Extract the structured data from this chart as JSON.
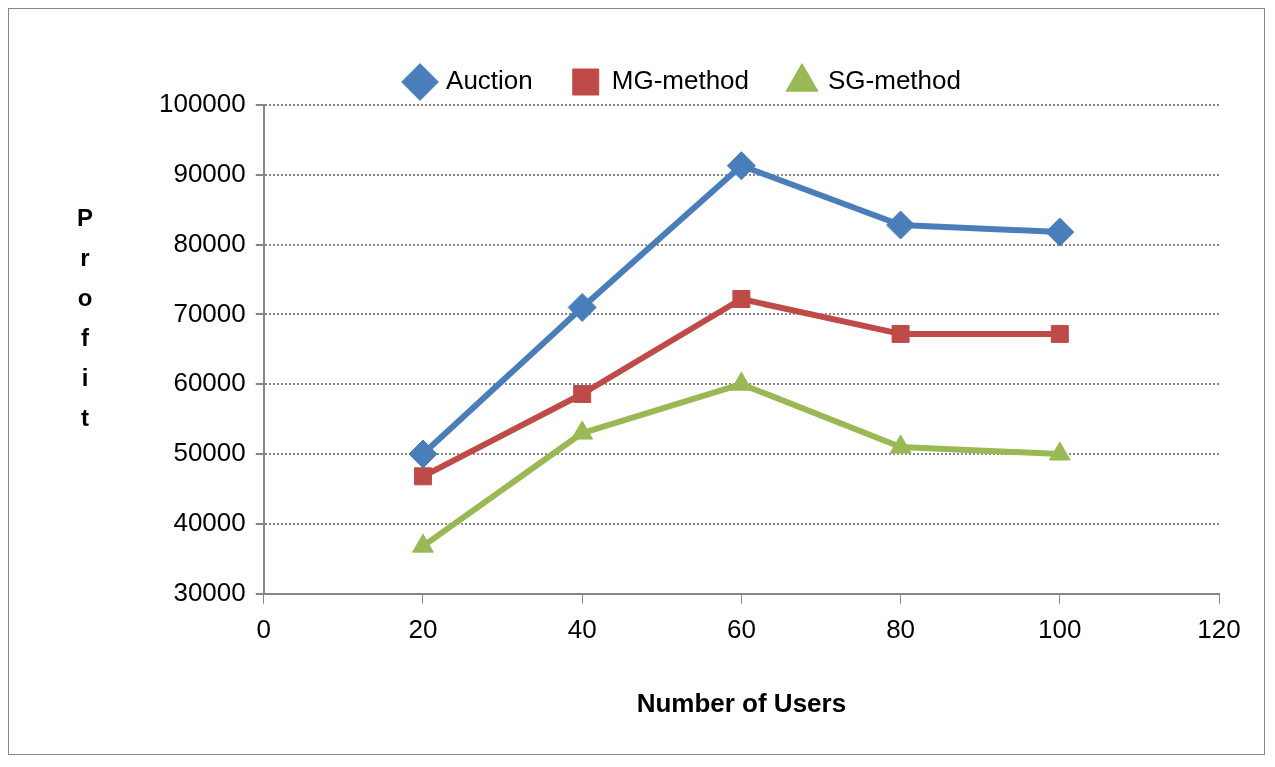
{
  "chart_data": {
    "type": "line",
    "xlabel": "Number of Users",
    "ylabel": "Profit",
    "x": [
      20,
      40,
      60,
      80,
      100
    ],
    "series": [
      {
        "name": "Auction",
        "color": "#4a7ebb",
        "marker": "diamond",
        "values": [
          50000,
          71000,
          91300,
          82800,
          81800
        ]
      },
      {
        "name": "MG-method",
        "color": "#be4b48",
        "marker": "square",
        "values": [
          46800,
          58600,
          72200,
          67200,
          67200
        ]
      },
      {
        "name": "SG-method",
        "color": "#98b954",
        "marker": "triangle",
        "values": [
          36800,
          53000,
          60000,
          51000,
          50000
        ]
      }
    ],
    "xlim": [
      0,
      120
    ],
    "xticks": [
      0,
      20,
      40,
      60,
      80,
      100,
      120
    ],
    "ylim": [
      30000,
      100000
    ],
    "yticks": [
      30000,
      40000,
      50000,
      60000,
      70000,
      80000,
      90000,
      100000
    ],
    "grid": "y",
    "legend": "top",
    "line_style": "solid"
  }
}
